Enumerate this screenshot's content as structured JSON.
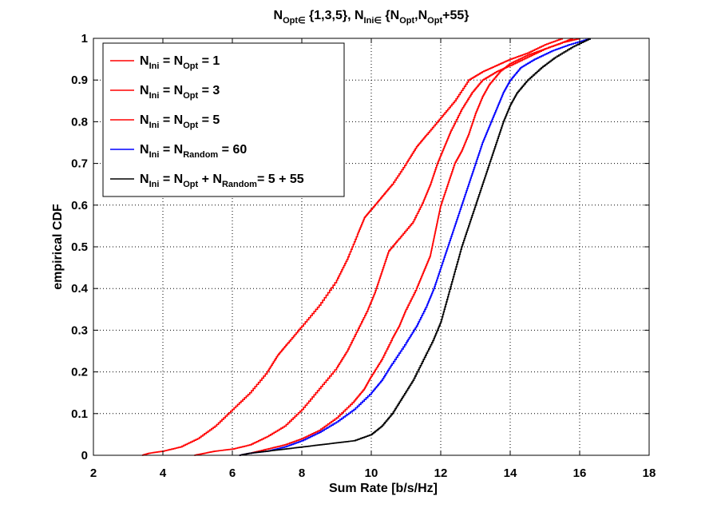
{
  "chart_data": {
    "type": "line",
    "title": {
      "parts": [
        {
          "t": "N",
          "s": "base"
        },
        {
          "t": "Opt",
          "s": "sub"
        },
        {
          "t": "∈",
          "s": "sub"
        },
        {
          "t": " {1,3,5}, N",
          "s": "base"
        },
        {
          "t": "Ini",
          "s": "sub"
        },
        {
          "t": "∈",
          "s": "sub"
        },
        {
          "t": " {N",
          "s": "base"
        },
        {
          "t": "Opt",
          "s": "sub"
        },
        {
          "t": ",N",
          "s": "base"
        },
        {
          "t": "Opt",
          "s": "sub"
        },
        {
          "t": "+55}",
          "s": "base"
        }
      ]
    },
    "xlabel": "Sum Rate [b/s/Hz]",
    "ylabel": "empirical CDF",
    "xlim": [
      2,
      18
    ],
    "ylim": [
      0,
      1
    ],
    "xticks": [
      2,
      4,
      6,
      8,
      10,
      12,
      14,
      16,
      18
    ],
    "yticks": [
      0,
      0.1,
      0.2,
      0.3,
      0.4,
      0.5,
      0.6,
      0.7,
      0.8,
      0.9,
      1
    ],
    "grid": true,
    "legend_position": "top-left",
    "series": [
      {
        "id": "s1",
        "color": "#ff0000",
        "legend": [
          {
            "t": "N",
            "s": "base"
          },
          {
            "t": "Ini",
            "s": "sub"
          },
          {
            "t": " = N",
            "s": "base"
          },
          {
            "t": "Opt",
            "s": "sub"
          },
          {
            "t": " = 1",
            "s": "base"
          }
        ],
        "points": [
          [
            3.4,
            0
          ],
          [
            3.6,
            0.005
          ],
          [
            4.0,
            0.01
          ],
          [
            4.5,
            0.02
          ],
          [
            5.0,
            0.04
          ],
          [
            5.5,
            0.07
          ],
          [
            6.0,
            0.11
          ],
          [
            6.5,
            0.15
          ],
          [
            7.0,
            0.2
          ],
          [
            7.3,
            0.24
          ],
          [
            7.6,
            0.27
          ],
          [
            8.0,
            0.31
          ],
          [
            8.5,
            0.36
          ],
          [
            9.0,
            0.42
          ],
          [
            9.3,
            0.47
          ],
          [
            9.6,
            0.53
          ],
          [
            9.8,
            0.57
          ],
          [
            10.0,
            0.59
          ],
          [
            10.3,
            0.62
          ],
          [
            10.6,
            0.65
          ],
          [
            11.0,
            0.7
          ],
          [
            11.3,
            0.74
          ],
          [
            11.6,
            0.77
          ],
          [
            12.0,
            0.81
          ],
          [
            12.4,
            0.85
          ],
          [
            12.8,
            0.9
          ],
          [
            13.2,
            0.92
          ],
          [
            13.6,
            0.935
          ],
          [
            14.0,
            0.95
          ],
          [
            14.5,
            0.965
          ],
          [
            15.0,
            0.985
          ],
          [
            15.5,
            1.0
          ]
        ]
      },
      {
        "id": "s3",
        "color": "#ff0000",
        "legend": [
          {
            "t": "N",
            "s": "base"
          },
          {
            "t": "Ini",
            "s": "sub"
          },
          {
            "t": " = N",
            "s": "base"
          },
          {
            "t": "Opt",
            "s": "sub"
          },
          {
            "t": " = 3",
            "s": "base"
          }
        ],
        "points": [
          [
            4.9,
            0
          ],
          [
            5.2,
            0.005
          ],
          [
            5.5,
            0.01
          ],
          [
            6.0,
            0.015
          ],
          [
            6.5,
            0.025
          ],
          [
            7.0,
            0.045
          ],
          [
            7.5,
            0.07
          ],
          [
            8.0,
            0.11
          ],
          [
            8.5,
            0.16
          ],
          [
            9.0,
            0.21
          ],
          [
            9.3,
            0.25
          ],
          [
            9.6,
            0.3
          ],
          [
            9.9,
            0.35
          ],
          [
            10.1,
            0.39
          ],
          [
            10.3,
            0.44
          ],
          [
            10.5,
            0.49
          ],
          [
            10.8,
            0.52
          ],
          [
            11.2,
            0.56
          ],
          [
            11.5,
            0.61
          ],
          [
            11.7,
            0.65
          ],
          [
            11.9,
            0.7
          ],
          [
            12.1,
            0.74
          ],
          [
            12.3,
            0.78
          ],
          [
            12.6,
            0.83
          ],
          [
            12.9,
            0.87
          ],
          [
            13.2,
            0.9
          ],
          [
            13.6,
            0.92
          ],
          [
            14.0,
            0.935
          ],
          [
            14.5,
            0.955
          ],
          [
            15.0,
            0.975
          ],
          [
            15.5,
            0.99
          ],
          [
            15.8,
            1.0
          ]
        ]
      },
      {
        "id": "s5",
        "color": "#ff0000",
        "legend": [
          {
            "t": "N",
            "s": "base"
          },
          {
            "t": "Ini",
            "s": "sub"
          },
          {
            "t": " = N",
            "s": "base"
          },
          {
            "t": "Opt",
            "s": "sub"
          },
          {
            "t": " = 5",
            "s": "base"
          }
        ],
        "points": [
          [
            6.2,
            0
          ],
          [
            6.5,
            0.005
          ],
          [
            7.0,
            0.015
          ],
          [
            7.5,
            0.025
          ],
          [
            8.0,
            0.04
          ],
          [
            8.5,
            0.06
          ],
          [
            9.0,
            0.09
          ],
          [
            9.5,
            0.13
          ],
          [
            9.8,
            0.16
          ],
          [
            10.0,
            0.19
          ],
          [
            10.3,
            0.23
          ],
          [
            10.6,
            0.28
          ],
          [
            10.8,
            0.31
          ],
          [
            11.0,
            0.35
          ],
          [
            11.3,
            0.4
          ],
          [
            11.5,
            0.44
          ],
          [
            11.7,
            0.48
          ],
          [
            11.8,
            0.52
          ],
          [
            11.9,
            0.56
          ],
          [
            12.0,
            0.6
          ],
          [
            12.2,
            0.65
          ],
          [
            12.4,
            0.7
          ],
          [
            12.6,
            0.73
          ],
          [
            12.8,
            0.77
          ],
          [
            13.0,
            0.82
          ],
          [
            13.2,
            0.86
          ],
          [
            13.4,
            0.89
          ],
          [
            13.7,
            0.92
          ],
          [
            14.0,
            0.94
          ],
          [
            14.5,
            0.96
          ],
          [
            15.0,
            0.975
          ],
          [
            15.5,
            0.99
          ],
          [
            16.0,
            1.0
          ]
        ]
      },
      {
        "id": "s60",
        "color": "#0000ff",
        "legend": [
          {
            "t": "N",
            "s": "base"
          },
          {
            "t": "Ini",
            "s": "sub"
          },
          {
            "t": " = N",
            "s": "base"
          },
          {
            "t": "Random",
            "s": "sub"
          },
          {
            "t": " = 60",
            "s": "base"
          }
        ],
        "points": [
          [
            6.2,
            0
          ],
          [
            6.5,
            0.005
          ],
          [
            7.0,
            0.01
          ],
          [
            7.5,
            0.02
          ],
          [
            8.0,
            0.035
          ],
          [
            8.5,
            0.055
          ],
          [
            9.0,
            0.08
          ],
          [
            9.5,
            0.11
          ],
          [
            10.0,
            0.15
          ],
          [
            10.3,
            0.18
          ],
          [
            10.6,
            0.22
          ],
          [
            11.0,
            0.27
          ],
          [
            11.3,
            0.31
          ],
          [
            11.6,
            0.36
          ],
          [
            11.8,
            0.4
          ],
          [
            12.0,
            0.45
          ],
          [
            12.2,
            0.5
          ],
          [
            12.4,
            0.55
          ],
          [
            12.6,
            0.6
          ],
          [
            12.8,
            0.65
          ],
          [
            13.0,
            0.7
          ],
          [
            13.2,
            0.75
          ],
          [
            13.4,
            0.79
          ],
          [
            13.6,
            0.83
          ],
          [
            13.8,
            0.87
          ],
          [
            14.0,
            0.9
          ],
          [
            14.3,
            0.93
          ],
          [
            14.7,
            0.95
          ],
          [
            15.2,
            0.97
          ],
          [
            15.7,
            0.985
          ],
          [
            16.3,
            1.0
          ]
        ]
      },
      {
        "id": "s555",
        "color": "#000000",
        "legend": [
          {
            "t": "N",
            "s": "base"
          },
          {
            "t": "Ini",
            "s": "sub"
          },
          {
            "t": " = N",
            "s": "base"
          },
          {
            "t": "Opt",
            "s": "sub"
          },
          {
            "t": " + N",
            "s": "base"
          },
          {
            "t": "Random",
            "s": "sub"
          },
          {
            "t": "= 5 + 55",
            "s": "base"
          }
        ],
        "points": [
          [
            6.2,
            0
          ],
          [
            6.5,
            0.005
          ],
          [
            7.0,
            0.01
          ],
          [
            7.5,
            0.015
          ],
          [
            8.0,
            0.02
          ],
          [
            8.5,
            0.025
          ],
          [
            9.0,
            0.03
          ],
          [
            9.5,
            0.035
          ],
          [
            10.0,
            0.05
          ],
          [
            10.3,
            0.07
          ],
          [
            10.6,
            0.1
          ],
          [
            10.9,
            0.14
          ],
          [
            11.2,
            0.18
          ],
          [
            11.5,
            0.23
          ],
          [
            11.8,
            0.28
          ],
          [
            12.0,
            0.32
          ],
          [
            12.2,
            0.38
          ],
          [
            12.4,
            0.44
          ],
          [
            12.6,
            0.5
          ],
          [
            12.8,
            0.55
          ],
          [
            13.0,
            0.6
          ],
          [
            13.2,
            0.65
          ],
          [
            13.4,
            0.7
          ],
          [
            13.6,
            0.75
          ],
          [
            13.8,
            0.8
          ],
          [
            14.0,
            0.84
          ],
          [
            14.2,
            0.87
          ],
          [
            14.5,
            0.9
          ],
          [
            14.9,
            0.93
          ],
          [
            15.3,
            0.955
          ],
          [
            15.8,
            0.98
          ],
          [
            16.3,
            1.0
          ]
        ]
      }
    ]
  }
}
